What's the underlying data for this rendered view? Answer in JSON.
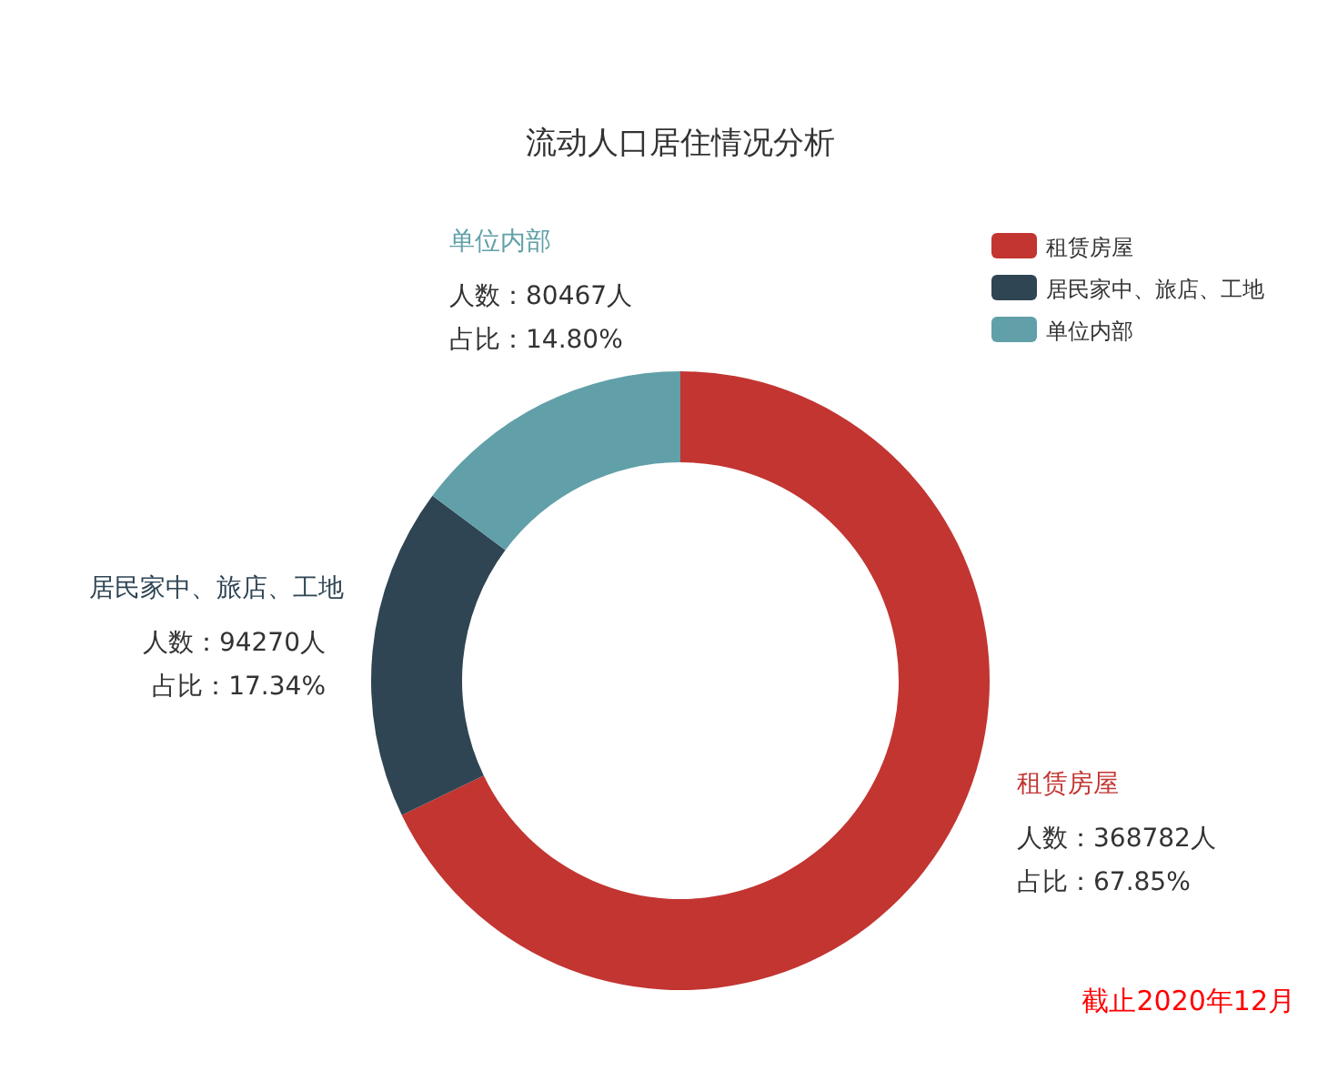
{
  "chart_data": {
    "type": "donut",
    "title": "流动人口居住情况分析",
    "categories": [
      "租赁房屋",
      "居民家中、旅店、工地",
      "单位内部"
    ],
    "values": [
      368782,
      94270,
      80467
    ],
    "colors": [
      "#c23531",
      "#2f4554",
      "#61a0a8"
    ],
    "value_labels": [
      "人数：368782人",
      "人数：94270人",
      "人数：80467人"
    ],
    "legend": "top right",
    "annotations": [
      {
        "text": "占比：67.85%",
        "x": "租赁房屋"
      },
      {
        "text": "占比：17.34%",
        "x": "居民家中、旅店、工地"
      },
      {
        "text": "占比：14.80%",
        "x": "单位内部"
      },
      "截止2020年12月"
    ]
  }
}
